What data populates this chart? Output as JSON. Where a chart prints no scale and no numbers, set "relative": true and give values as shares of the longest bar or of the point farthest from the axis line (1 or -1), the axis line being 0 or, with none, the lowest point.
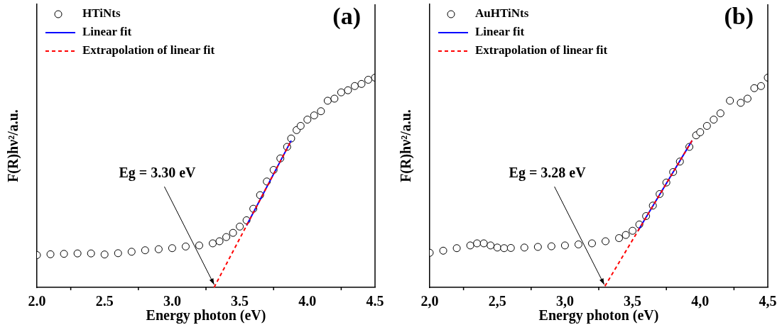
{
  "chart_data": [
    {
      "type": "scatter",
      "title": "(a)",
      "xlabel": "Energy photon (eV)",
      "ylabel": "F(R)hν²/a.u.",
      "relative": true,
      "xlim": [
        2,
        4.5
      ],
      "xticks": [
        {
          "value": 2,
          "label": "2.0"
        },
        {
          "value": 2.5,
          "label": "2.5"
        },
        {
          "value": 3,
          "label": "3.0"
        },
        {
          "value": 3.5,
          "label": "3.5"
        },
        {
          "value": 4,
          "label": "4.0"
        },
        {
          "value": 4.5,
          "label": "4.5"
        }
      ],
      "tick_labels": "x",
      "legend": "top left",
      "marker": "circle",
      "grid": false,
      "annotations": [
        {
          "text": "Eg = 3.30 eV",
          "x": 3.31,
          "y": 0
        }
      ],
      "series": [
        {
          "name": "HTiNts",
          "type": "scatter",
          "color": "#000000",
          "x": [
            2.0,
            2.1,
            2.2,
            2.3,
            2.4,
            2.5,
            2.6,
            2.7,
            2.8,
            2.9,
            3.0,
            3.1,
            3.2,
            3.3,
            3.35,
            3.4,
            3.45,
            3.5,
            3.55,
            3.6,
            3.65,
            3.7,
            3.75,
            3.8,
            3.85,
            3.88,
            3.92,
            3.95,
            4.0,
            4.05,
            4.1,
            4.15,
            4.2,
            4.25,
            4.3,
            4.35,
            4.4,
            4.45,
            4.5
          ],
          "values": [
            0.154,
            0.158,
            0.16,
            0.162,
            0.162,
            0.157,
            0.163,
            0.17,
            0.177,
            0.182,
            0.187,
            0.195,
            0.2,
            0.21,
            0.22,
            0.24,
            0.26,
            0.29,
            0.32,
            0.375,
            0.44,
            0.505,
            0.56,
            0.615,
            0.67,
            0.71,
            0.75,
            0.77,
            0.8,
            0.82,
            0.84,
            0.89,
            0.9,
            0.93,
            0.94,
            0.96,
            0.97,
            0.99,
            1.0
          ]
        },
        {
          "name": "Linear fit",
          "type": "line",
          "color": "#0000ff",
          "marker": "none",
          "x": [
            3.55,
            3.88
          ],
          "values": [
            0.295,
            0.7
          ]
        },
        {
          "name": "Extrapolation of linear fit",
          "type": "line",
          "color": "#ff0000",
          "marker": "none",
          "line_style": "dashed",
          "x": [
            3.31,
            3.88
          ],
          "values": [
            0,
            0.7
          ]
        }
      ]
    },
    {
      "type": "scatter",
      "title": "(b)",
      "xlabel": "Energy photon (eV)",
      "ylabel": "F(R)hν²/a.u.",
      "relative": true,
      "xlim": [
        2,
        4.5
      ],
      "xticks": [
        {
          "value": 2,
          "label": "2,0"
        },
        {
          "value": 2.5,
          "label": "2,5"
        },
        {
          "value": 3,
          "label": "3,0"
        },
        {
          "value": 3.5,
          "label": "3,5"
        },
        {
          "value": 4,
          "label": "4,0"
        },
        {
          "value": 4.5,
          "label": "4,5"
        }
      ],
      "tick_labels": "x",
      "legend": "top left",
      "marker": "circle",
      "grid": false,
      "annotations": [
        {
          "text": "Eg = 3.28 eV",
          "x": 3.29,
          "y": 0
        }
      ],
      "series": [
        {
          "name": "AuHTiNts",
          "type": "scatter",
          "color": "#000000",
          "x": [
            2.0,
            2.1,
            2.2,
            2.3,
            2.35,
            2.4,
            2.45,
            2.5,
            2.55,
            2.6,
            2.7,
            2.8,
            2.9,
            3.0,
            3.1,
            3.2,
            3.3,
            3.4,
            3.45,
            3.5,
            3.55,
            3.6,
            3.65,
            3.7,
            3.75,
            3.8,
            3.85,
            3.92,
            3.97,
            4.0,
            4.05,
            4.1,
            4.15,
            4.22,
            4.3,
            4.35,
            4.4,
            4.45,
            4.5
          ],
          "values": [
            0.165,
            0.175,
            0.187,
            0.2,
            0.21,
            0.21,
            0.2,
            0.19,
            0.187,
            0.188,
            0.19,
            0.193,
            0.196,
            0.2,
            0.205,
            0.21,
            0.22,
            0.235,
            0.25,
            0.27,
            0.3,
            0.34,
            0.39,
            0.445,
            0.5,
            0.55,
            0.6,
            0.67,
            0.725,
            0.74,
            0.77,
            0.8,
            0.83,
            0.89,
            0.88,
            0.9,
            0.95,
            0.96,
            1.0
          ]
        },
        {
          "name": "Linear fit",
          "type": "line",
          "color": "#0000ff",
          "marker": "none",
          "x": [
            3.54,
            3.94
          ],
          "values": [
            0.27,
            0.7
          ]
        },
        {
          "name": "Extrapolation of linear fit",
          "type": "line",
          "color": "#ff0000",
          "marker": "none",
          "line_style": "dashed",
          "x": [
            3.94,
            3.29
          ],
          "values": [
            0.7,
            0
          ]
        }
      ]
    }
  ]
}
